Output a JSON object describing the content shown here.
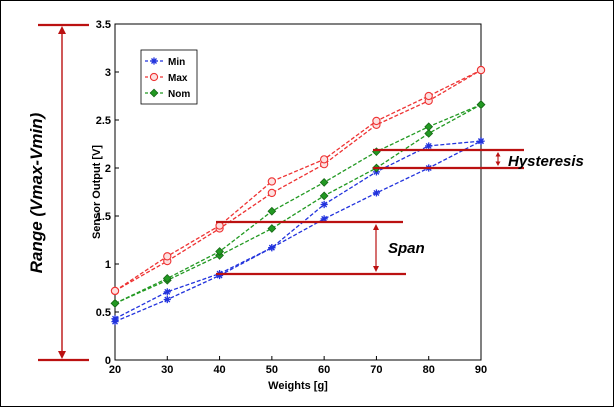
{
  "chart_data": {
    "type": "line",
    "xlabel": "Weights [g]",
    "ylabel": "Sensor Output [V]",
    "xlim": [
      20,
      90
    ],
    "ylim": [
      0,
      3.5
    ],
    "x_ticks": [
      "20",
      "30",
      "40",
      "50",
      "60",
      "70",
      "80",
      "90"
    ],
    "y_ticks": [
      "0",
      "0.5",
      "1",
      "1.5",
      "2",
      "2.5",
      "3",
      "3.5"
    ],
    "grid": true,
    "legend_position": "top-left",
    "series": [
      {
        "name": "Min",
        "color": "#2233dd",
        "marker": "asterisk",
        "up": {
          "x": [
            20,
            30,
            40,
            50,
            60,
            70,
            80,
            90
          ],
          "y": [
            0.4,
            0.63,
            0.88,
            1.17,
            1.47,
            1.74,
            2.0,
            2.28
          ]
        },
        "down": {
          "x": [
            20,
            30,
            40,
            50,
            60,
            70,
            80,
            90
          ],
          "y": [
            0.43,
            0.71,
            0.9,
            1.17,
            1.62,
            1.96,
            2.23,
            2.28
          ]
        }
      },
      {
        "name": "Max",
        "color": "#ee3333",
        "marker": "circle",
        "up": {
          "x": [
            20,
            30,
            40,
            50,
            60,
            70,
            80,
            90
          ],
          "y": [
            0.72,
            1.03,
            1.37,
            1.74,
            2.04,
            2.45,
            2.7,
            3.02
          ]
        },
        "down": {
          "x": [
            20,
            30,
            40,
            50,
            60,
            70,
            80,
            90
          ],
          "y": [
            0.72,
            1.08,
            1.4,
            1.86,
            2.09,
            2.49,
            2.75,
            3.02
          ]
        }
      },
      {
        "name": "Nom",
        "color": "#229922",
        "marker": "diamond",
        "up": {
          "x": [
            20,
            30,
            40,
            50,
            60,
            70,
            80,
            90
          ],
          "y": [
            0.59,
            0.83,
            1.09,
            1.37,
            1.71,
            2.0,
            2.36,
            2.66
          ]
        },
        "down": {
          "x": [
            20,
            30,
            40,
            50,
            60,
            70,
            80,
            90
          ],
          "y": [
            0.59,
            0.85,
            1.13,
            1.55,
            1.85,
            2.17,
            2.43,
            2.66
          ]
        }
      }
    ],
    "annotations": {
      "hysteresis": "Hysteresis",
      "span": "Span",
      "range": "Range (Vmax-Vmin)"
    },
    "annotation_color": "#bb1111"
  }
}
